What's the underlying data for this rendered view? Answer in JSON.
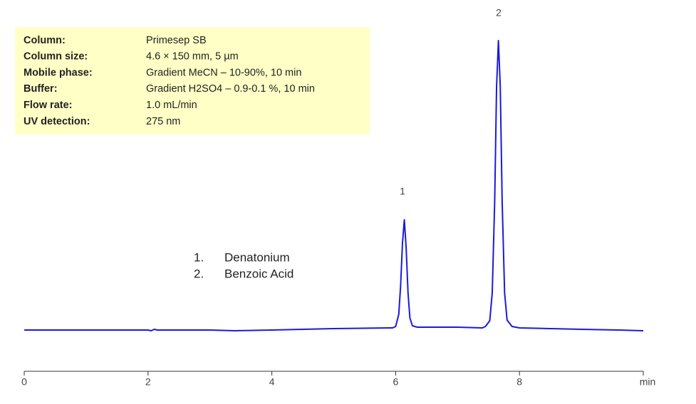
{
  "chart_data": {
    "type": "line",
    "x": [
      0,
      1,
      2,
      2.05,
      2.1,
      2.15,
      2.2,
      3,
      3.4,
      4,
      5,
      5.9,
      5.95,
      6.0,
      6.05,
      6.08,
      6.11,
      6.14,
      6.17,
      6.2,
      6.23,
      6.27,
      6.35,
      6.4,
      7,
      7.4,
      7.45,
      7.52,
      7.56,
      7.6,
      7.63,
      7.66,
      7.69,
      7.72,
      7.76,
      7.8,
      7.88,
      8.0,
      8.5,
      9,
      9.6,
      10
    ],
    "series": [
      {
        "color": "#1a1adc",
        "values": [
          0,
          0,
          0,
          -1,
          1,
          0,
          0,
          0,
          -1,
          0,
          2,
          3,
          3,
          5,
          22,
          62,
          122,
          155,
          115,
          52,
          17,
          6,
          4,
          4,
          4,
          3,
          5,
          13,
          52,
          182,
          342,
          407,
          342,
          182,
          52,
          14,
          5,
          3,
          2,
          1,
          0,
          -1
        ]
      }
    ],
    "xlim": [
      0,
      10
    ],
    "ylim": [
      -58,
      420
    ],
    "xticks": [
      0,
      2,
      4,
      6,
      8,
      {
        "value": 10,
        "label": "min"
      }
    ],
    "peak_labels": [
      "1",
      "2"
    ],
    "compounds": [
      {
        "number": "1.",
        "name": "Denatonium"
      },
      {
        "number": "2.",
        "name": "Benzoic Acid"
      }
    ],
    "conditions": [
      {
        "key": "Column:",
        "value": "Primesep SB"
      },
      {
        "key": "Column size:",
        "value": "4.6 × 150 mm, 5 µm"
      },
      {
        "key": "Mobile phase:",
        "value": "Gradient MeCN – 10-90%, 10 min"
      },
      {
        "key": "Buffer:",
        "value": "Gradient H2SO4 – 0.9-0.1 %, 10 min"
      },
      {
        "key": "Flow rate:",
        "value": "1.0 mL/min"
      },
      {
        "key": "UV detection:",
        "value": "275 nm"
      }
    ]
  }
}
